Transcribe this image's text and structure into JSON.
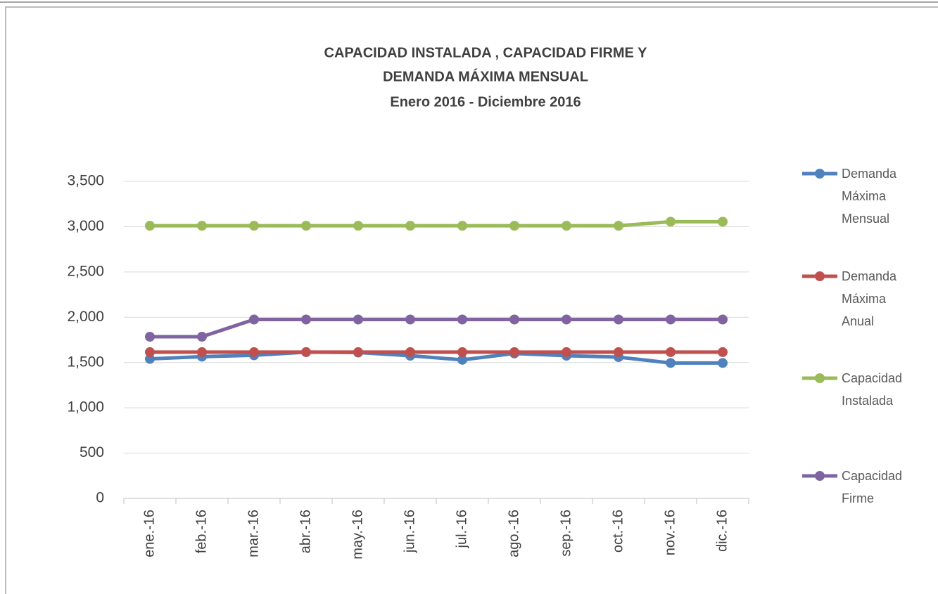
{
  "chart_data": {
    "type": "line",
    "title": [
      "CAPACIDAD  INSTALADA , CAPACIDAD  FIRME  Y",
      "DEMANDA  MÁXIMA  MENSUAL"
    ],
    "subtitle": "Enero  2016   -  Diciembre  2016",
    "categories": [
      "ene.-16",
      "feb.-16",
      "mar.-16",
      "abr.-16",
      "may.-16",
      "jun.-16",
      "jul.-16",
      "ago.-16",
      "sep.-16",
      "oct.-16",
      "nov.-16",
      "dic.-16"
    ],
    "series": [
      {
        "name": "Demanda Máxima Mensual",
        "color": "#4f81bd",
        "values": [
          1540,
          1565,
          1580,
          1615,
          1610,
          1575,
          1530,
          1600,
          1575,
          1560,
          1495,
          1495
        ]
      },
      {
        "name": "Demanda Máxima Anual",
        "color": "#c0504d",
        "values": [
          1615,
          1615,
          1615,
          1615,
          1615,
          1615,
          1615,
          1615,
          1615,
          1615,
          1615,
          1615
        ]
      },
      {
        "name": "Capacidad Instalada",
        "color": "#9bbb59",
        "values": [
          3010,
          3010,
          3010,
          3010,
          3010,
          3010,
          3010,
          3010,
          3010,
          3010,
          3055,
          3055
        ]
      },
      {
        "name": "Capacidad Firme",
        "color": "#8064a2",
        "values": [
          1785,
          1785,
          1975,
          1975,
          1975,
          1975,
          1975,
          1975,
          1975,
          1975,
          1975,
          1975
        ]
      }
    ],
    "ylim": [
      0,
      3500
    ],
    "yticks": [
      0,
      500,
      {
        "value": 1000,
        "label": "1,000"
      },
      {
        "value": 1500,
        "label": "1,500"
      },
      {
        "value": 2000,
        "label": "2,000"
      },
      {
        "value": 2500,
        "label": "2,500"
      },
      {
        "value": 3000,
        "label": "3,000"
      },
      {
        "value": 3500,
        "label": "3,500"
      }
    ],
    "grid": true,
    "legend": "right"
  }
}
